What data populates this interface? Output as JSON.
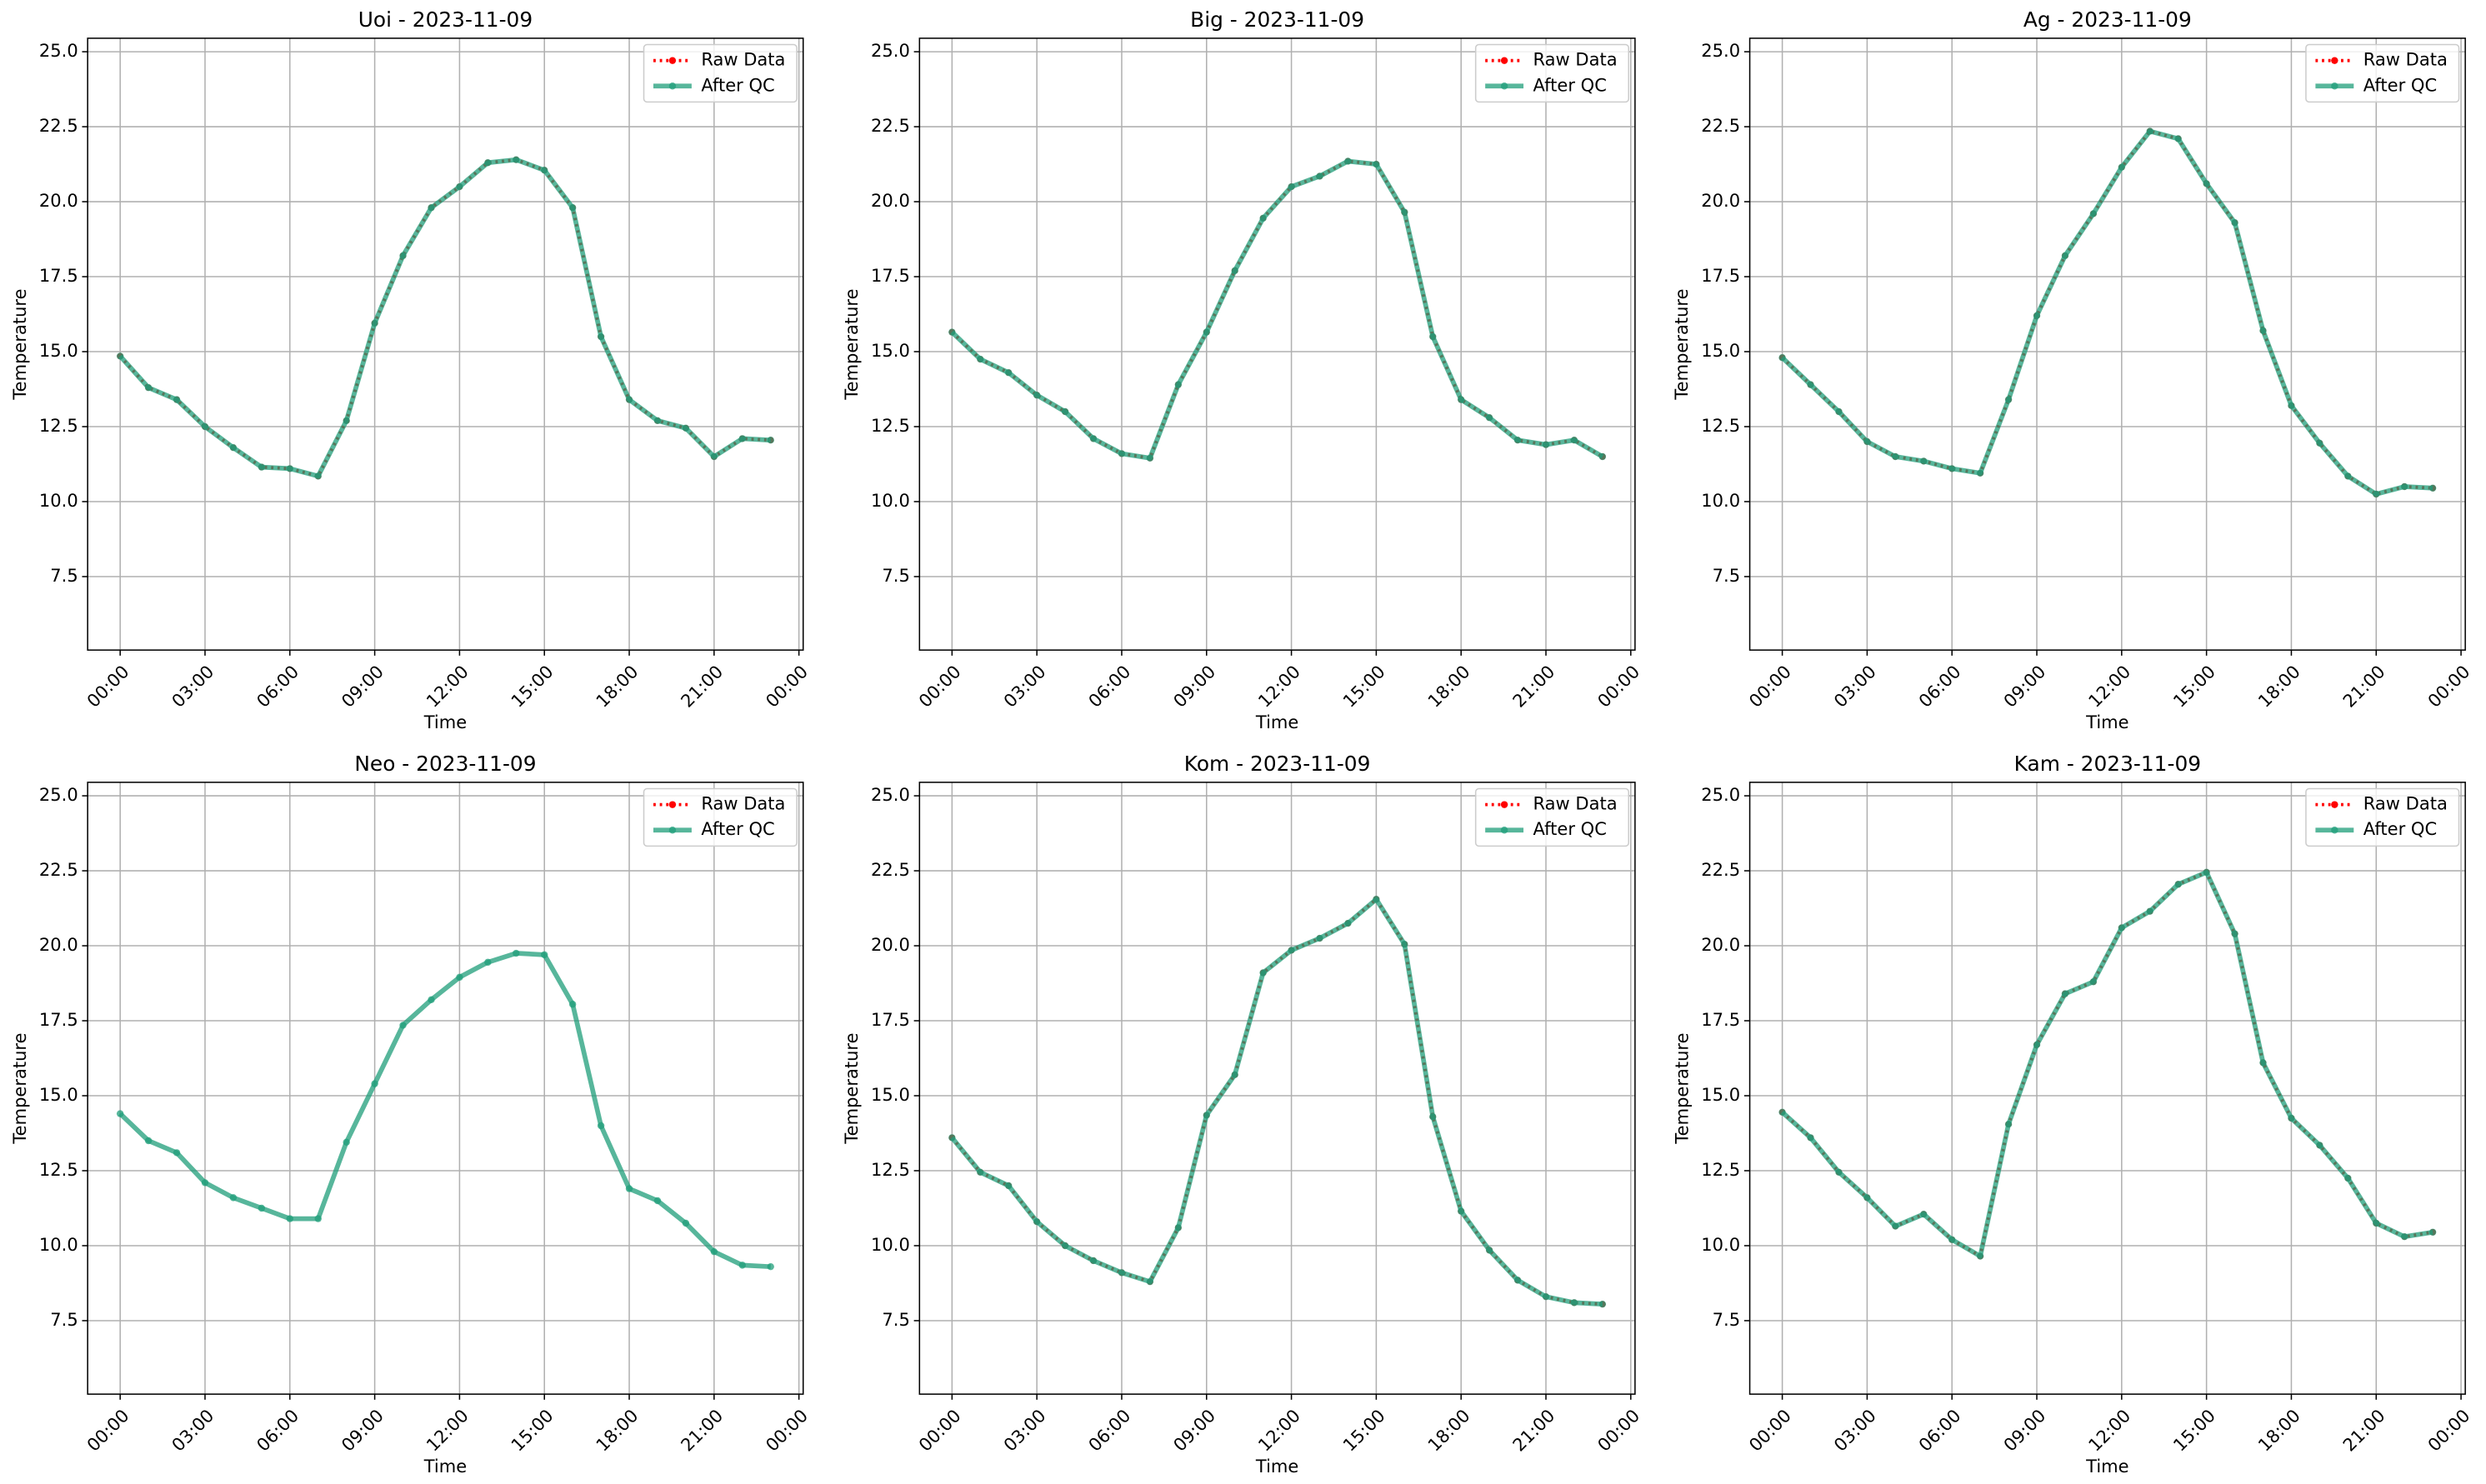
{
  "chart_data": [
    {
      "type": "line",
      "title": "Uoi - 2023-11-09",
      "xlabel": "Time",
      "ylabel": "Temperature",
      "x": [
        0,
        1,
        2,
        3,
        4,
        5,
        6,
        7,
        8,
        9,
        10,
        11,
        12,
        13,
        14,
        15,
        16,
        17,
        18,
        19,
        20,
        21,
        22,
        23
      ],
      "xlim": [
        -1.15,
        24.15
      ],
      "xticks": [
        {
          "value": 0,
          "label": "00:00"
        },
        {
          "value": 3,
          "label": "03:00"
        },
        {
          "value": 6,
          "label": "06:00"
        },
        {
          "value": 9,
          "label": "09:00"
        },
        {
          "value": 12,
          "label": "12:00"
        },
        {
          "value": 15,
          "label": "15:00"
        },
        {
          "value": 18,
          "label": "18:00"
        },
        {
          "value": 21,
          "label": "21:00"
        },
        {
          "value": 24,
          "label": "00:00"
        }
      ],
      "ylim": [
        5.05,
        25.45
      ],
      "yticks": [
        7.5,
        {
          "value": 10,
          "label": "10.0"
        },
        12.5,
        {
          "value": 15,
          "label": "15.0"
        },
        17.5,
        {
          "value": 20,
          "label": "20.0"
        },
        22.5,
        {
          "value": 25,
          "label": "25.0"
        }
      ],
      "grid": true,
      "legend": "upper right",
      "series": [
        {
          "name": "Raw Data",
          "color": "#ff0000",
          "values": [
            14.85,
            13.8,
            13.4,
            12.5,
            11.8,
            11.15,
            11.1,
            10.85,
            12.7,
            15.95,
            18.2,
            19.8,
            20.5,
            21.3,
            21.4,
            21.05,
            19.8,
            15.5,
            13.4,
            12.7,
            12.45,
            11.5,
            12.1,
            12.05
          ]
        },
        {
          "name": "After QC",
          "color": "#1f9e7a",
          "values": [
            14.85,
            13.8,
            13.4,
            12.5,
            11.8,
            11.15,
            11.1,
            10.85,
            12.7,
            15.95,
            18.2,
            19.8,
            20.5,
            21.3,
            21.4,
            21.05,
            19.8,
            15.5,
            13.4,
            12.7,
            12.45,
            11.5,
            12.1,
            12.05
          ]
        }
      ]
    },
    {
      "type": "line",
      "title": "Big - 2023-11-09",
      "xlabel": "Time",
      "ylabel": "Temperature",
      "x": [
        0,
        1,
        2,
        3,
        4,
        5,
        6,
        7,
        8,
        9,
        10,
        11,
        12,
        13,
        14,
        15,
        16,
        17,
        18,
        19,
        20,
        21,
        22,
        23
      ],
      "xlim": [
        -1.15,
        24.15
      ],
      "xticks": [
        {
          "value": 0,
          "label": "00:00"
        },
        {
          "value": 3,
          "label": "03:00"
        },
        {
          "value": 6,
          "label": "06:00"
        },
        {
          "value": 9,
          "label": "09:00"
        },
        {
          "value": 12,
          "label": "12:00"
        },
        {
          "value": 15,
          "label": "15:00"
        },
        {
          "value": 18,
          "label": "18:00"
        },
        {
          "value": 21,
          "label": "21:00"
        },
        {
          "value": 24,
          "label": "00:00"
        }
      ],
      "ylim": [
        5.05,
        25.45
      ],
      "yticks": [
        7.5,
        {
          "value": 10,
          "label": "10.0"
        },
        12.5,
        {
          "value": 15,
          "label": "15.0"
        },
        17.5,
        {
          "value": 20,
          "label": "20.0"
        },
        22.5,
        {
          "value": 25,
          "label": "25.0"
        }
      ],
      "grid": true,
      "legend": "upper right",
      "series": [
        {
          "name": "Raw Data",
          "color": "#ff0000",
          "values": [
            15.65,
            14.75,
            14.3,
            13.55,
            13.0,
            12.1,
            11.6,
            11.45,
            13.9,
            15.65,
            17.7,
            19.45,
            20.5,
            20.85,
            21.35,
            21.25,
            19.65,
            15.5,
            13.4,
            12.8,
            12.05,
            11.9,
            12.05,
            11.5
          ]
        },
        {
          "name": "After QC",
          "color": "#1f9e7a",
          "values": [
            15.65,
            14.75,
            14.3,
            13.55,
            13.0,
            12.1,
            11.6,
            11.45,
            13.9,
            15.65,
            17.7,
            19.45,
            20.5,
            20.85,
            21.35,
            21.25,
            19.65,
            15.5,
            13.4,
            12.8,
            12.05,
            11.9,
            12.05,
            11.5
          ]
        }
      ]
    },
    {
      "type": "line",
      "title": "Ag - 2023-11-09",
      "xlabel": "Time",
      "ylabel": "Temperature",
      "x": [
        0,
        1,
        2,
        3,
        4,
        5,
        6,
        7,
        8,
        9,
        10,
        11,
        12,
        13,
        14,
        15,
        16,
        17,
        18,
        19,
        20,
        21,
        22,
        23
      ],
      "xlim": [
        -1.15,
        24.15
      ],
      "xticks": [
        {
          "value": 0,
          "label": "00:00"
        },
        {
          "value": 3,
          "label": "03:00"
        },
        {
          "value": 6,
          "label": "06:00"
        },
        {
          "value": 9,
          "label": "09:00"
        },
        {
          "value": 12,
          "label": "12:00"
        },
        {
          "value": 15,
          "label": "15:00"
        },
        {
          "value": 18,
          "label": "18:00"
        },
        {
          "value": 21,
          "label": "21:00"
        },
        {
          "value": 24,
          "label": "00:00"
        }
      ],
      "ylim": [
        5.05,
        25.45
      ],
      "yticks": [
        7.5,
        {
          "value": 10,
          "label": "10.0"
        },
        12.5,
        {
          "value": 15,
          "label": "15.0"
        },
        17.5,
        {
          "value": 20,
          "label": "20.0"
        },
        22.5,
        {
          "value": 25,
          "label": "25.0"
        }
      ],
      "grid": true,
      "legend": "upper right",
      "series": [
        {
          "name": "Raw Data",
          "color": "#ff0000",
          "values": [
            14.8,
            13.9,
            13.0,
            12.0,
            11.5,
            11.35,
            11.1,
            10.95,
            13.4,
            16.2,
            18.2,
            19.6,
            21.15,
            22.35,
            22.1,
            20.6,
            19.3,
            15.7,
            13.2,
            11.95,
            10.85,
            10.25,
            10.5,
            10.45
          ]
        },
        {
          "name": "After QC",
          "color": "#1f9e7a",
          "values": [
            14.8,
            13.9,
            13.0,
            12.0,
            11.5,
            11.35,
            11.1,
            10.95,
            13.4,
            16.2,
            18.2,
            19.6,
            21.15,
            22.35,
            22.1,
            20.6,
            19.3,
            15.7,
            13.2,
            11.95,
            10.85,
            10.25,
            10.5,
            10.45
          ]
        }
      ]
    },
    {
      "type": "line",
      "title": "Neo - 2023-11-09",
      "xlabel": "Time",
      "ylabel": "Temperature",
      "x": [
        0,
        1,
        2,
        3,
        4,
        5,
        6,
        7,
        8,
        9,
        10,
        11,
        12,
        13,
        14,
        15,
        16,
        17,
        18,
        19,
        20,
        21,
        22,
        23
      ],
      "xlim": [
        -1.15,
        24.15
      ],
      "xticks": [
        {
          "value": 0,
          "label": "00:00"
        },
        {
          "value": 3,
          "label": "03:00"
        },
        {
          "value": 6,
          "label": "06:00"
        },
        {
          "value": 9,
          "label": "09:00"
        },
        {
          "value": 12,
          "label": "12:00"
        },
        {
          "value": 15,
          "label": "15:00"
        },
        {
          "value": 18,
          "label": "18:00"
        },
        {
          "value": 21,
          "label": "21:00"
        },
        {
          "value": 24,
          "label": "00:00"
        }
      ],
      "ylim": [
        5.05,
        25.45
      ],
      "yticks": [
        7.5,
        {
          "value": 10,
          "label": "10.0"
        },
        12.5,
        {
          "value": 15,
          "label": "15.0"
        },
        17.5,
        {
          "value": 20,
          "label": "20.0"
        },
        22.5,
        {
          "value": 25,
          "label": "25.0"
        }
      ],
      "grid": true,
      "legend": "upper right",
      "series": [
        {
          "name": "Raw Data",
          "color": "#ff0000",
          "values": [
            null,
            null,
            null,
            null,
            null,
            null,
            null,
            null,
            null,
            null,
            null,
            null,
            null,
            null,
            null,
            null,
            null,
            null,
            null,
            null,
            null,
            null,
            null,
            null
          ]
        },
        {
          "name": "After QC",
          "color": "#1f9e7a",
          "values": [
            14.4,
            13.5,
            13.1,
            12.1,
            11.6,
            11.25,
            10.9,
            10.9,
            13.45,
            15.4,
            17.35,
            18.2,
            18.95,
            19.45,
            19.75,
            19.7,
            18.05,
            14.0,
            11.9,
            11.5,
            10.75,
            9.8,
            9.35,
            9.3
          ]
        }
      ]
    },
    {
      "type": "line",
      "title": "Kom - 2023-11-09",
      "xlabel": "Time",
      "ylabel": "Temperature",
      "x": [
        0,
        1,
        2,
        3,
        4,
        5,
        6,
        7,
        8,
        9,
        10,
        11,
        12,
        13,
        14,
        15,
        16,
        17,
        18,
        19,
        20,
        21,
        22,
        23
      ],
      "xlim": [
        -1.15,
        24.15
      ],
      "xticks": [
        {
          "value": 0,
          "label": "00:00"
        },
        {
          "value": 3,
          "label": "03:00"
        },
        {
          "value": 6,
          "label": "06:00"
        },
        {
          "value": 9,
          "label": "09:00"
        },
        {
          "value": 12,
          "label": "12:00"
        },
        {
          "value": 15,
          "label": "15:00"
        },
        {
          "value": 18,
          "label": "18:00"
        },
        {
          "value": 21,
          "label": "21:00"
        },
        {
          "value": 24,
          "label": "00:00"
        }
      ],
      "ylim": [
        5.05,
        25.45
      ],
      "yticks": [
        7.5,
        {
          "value": 10,
          "label": "10.0"
        },
        12.5,
        {
          "value": 15,
          "label": "15.0"
        },
        17.5,
        {
          "value": 20,
          "label": "20.0"
        },
        22.5,
        {
          "value": 25,
          "label": "25.0"
        }
      ],
      "grid": true,
      "legend": "upper right",
      "series": [
        {
          "name": "Raw Data",
          "color": "#ff0000",
          "values": [
            13.6,
            12.45,
            12.0,
            10.8,
            10.0,
            9.5,
            9.1,
            8.8,
            10.6,
            14.35,
            15.7,
            19.1,
            19.85,
            20.25,
            20.75,
            21.55,
            20.05,
            14.3,
            11.15,
            9.85,
            8.85,
            8.3,
            8.1,
            8.05
          ]
        },
        {
          "name": "After QC",
          "color": "#1f9e7a",
          "values": [
            13.6,
            12.45,
            12.0,
            10.8,
            10.0,
            9.5,
            9.1,
            8.8,
            10.6,
            14.35,
            15.7,
            19.1,
            19.85,
            20.25,
            20.75,
            21.55,
            20.05,
            14.3,
            11.15,
            9.85,
            8.85,
            8.3,
            8.1,
            8.05
          ]
        }
      ]
    },
    {
      "type": "line",
      "title": "Kam - 2023-11-09",
      "xlabel": "Time",
      "ylabel": "Temperature",
      "x": [
        0,
        1,
        2,
        3,
        4,
        5,
        6,
        7,
        8,
        9,
        10,
        11,
        12,
        13,
        14,
        15,
        16,
        17,
        18,
        19,
        20,
        21,
        22,
        23
      ],
      "xlim": [
        -1.15,
        24.15
      ],
      "xticks": [
        {
          "value": 0,
          "label": "00:00"
        },
        {
          "value": 3,
          "label": "03:00"
        },
        {
          "value": 6,
          "label": "06:00"
        },
        {
          "value": 9,
          "label": "09:00"
        },
        {
          "value": 12,
          "label": "12:00"
        },
        {
          "value": 15,
          "label": "15:00"
        },
        {
          "value": 18,
          "label": "18:00"
        },
        {
          "value": 21,
          "label": "21:00"
        },
        {
          "value": 24,
          "label": "00:00"
        }
      ],
      "ylim": [
        5.05,
        25.45
      ],
      "yticks": [
        7.5,
        {
          "value": 10,
          "label": "10.0"
        },
        12.5,
        {
          "value": 15,
          "label": "15.0"
        },
        17.5,
        {
          "value": 20,
          "label": "20.0"
        },
        22.5,
        {
          "value": 25,
          "label": "25.0"
        }
      ],
      "grid": true,
      "legend": "upper right",
      "series": [
        {
          "name": "Raw Data",
          "color": "#ff0000",
          "values": [
            14.45,
            13.6,
            12.45,
            11.6,
            10.65,
            11.05,
            10.2,
            9.65,
            14.05,
            16.7,
            18.4,
            18.8,
            20.6,
            21.15,
            22.05,
            22.45,
            20.4,
            16.1,
            14.25,
            13.35,
            12.25,
            10.75,
            10.3,
            10.45
          ]
        },
        {
          "name": "After QC",
          "color": "#1f9e7a",
          "values": [
            14.45,
            13.6,
            12.45,
            11.6,
            10.65,
            11.05,
            10.2,
            9.65,
            14.05,
            16.7,
            18.4,
            18.8,
            20.6,
            21.15,
            22.05,
            22.45,
            20.4,
            16.1,
            14.25,
            13.35,
            12.25,
            10.75,
            10.3,
            10.45
          ]
        }
      ]
    }
  ]
}
